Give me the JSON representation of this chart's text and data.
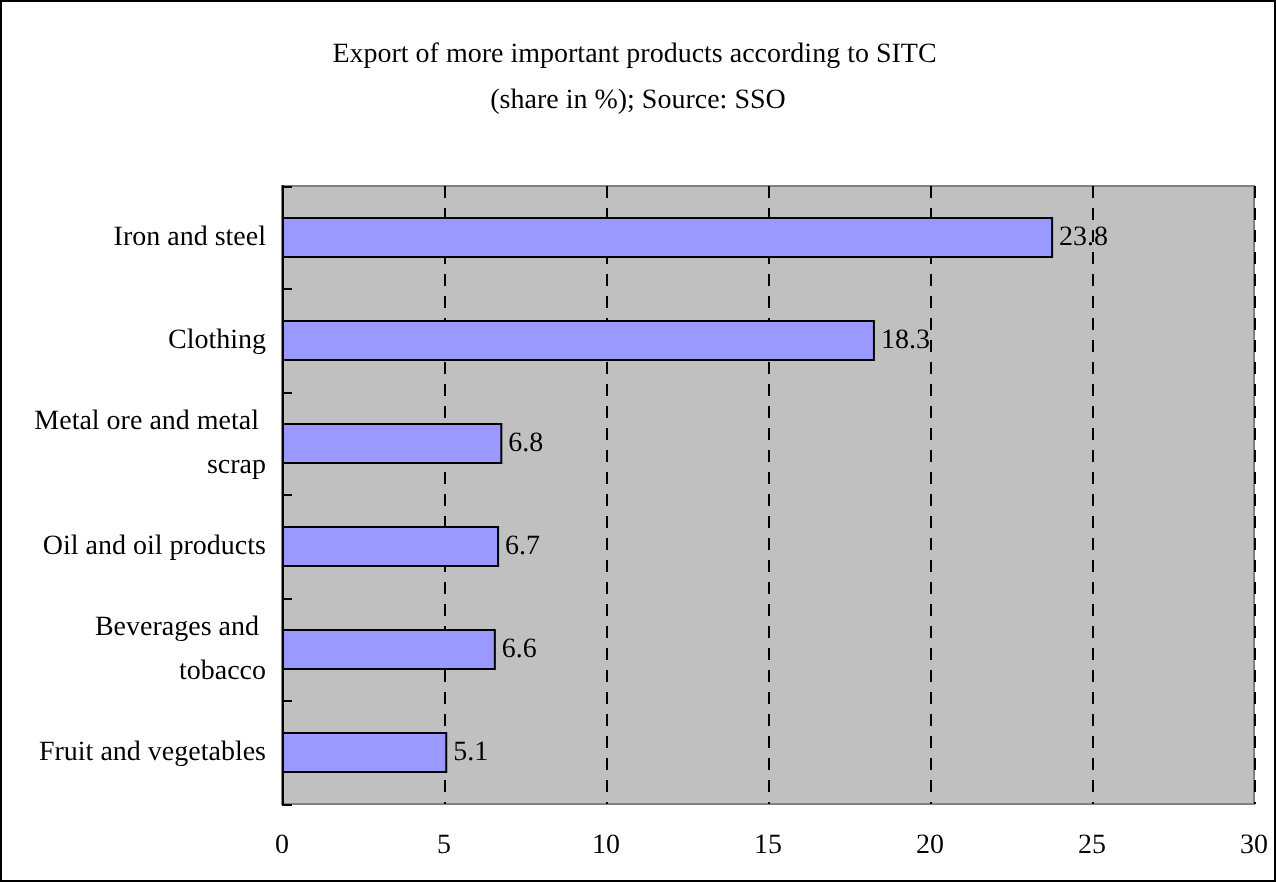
{
  "chart_data": {
    "type": "bar",
    "orientation": "horizontal",
    "title": "Export of more important products according to SITC (share in %); Source: SSO",
    "categories": [
      "Iron and steel",
      "Clothing",
      "Metal ore and metal scrap",
      "Oil and oil products",
      "Beverages and tobacco",
      "Fruit and vegetables"
    ],
    "values": [
      23.8,
      18.3,
      6.8,
      6.7,
      6.6,
      5.1
    ],
    "color": "#9999ff",
    "xlim": [
      0,
      30
    ],
    "xticks": [
      0,
      5,
      10,
      15,
      20,
      25,
      30
    ],
    "grid": "x",
    "data_labels": true
  }
}
